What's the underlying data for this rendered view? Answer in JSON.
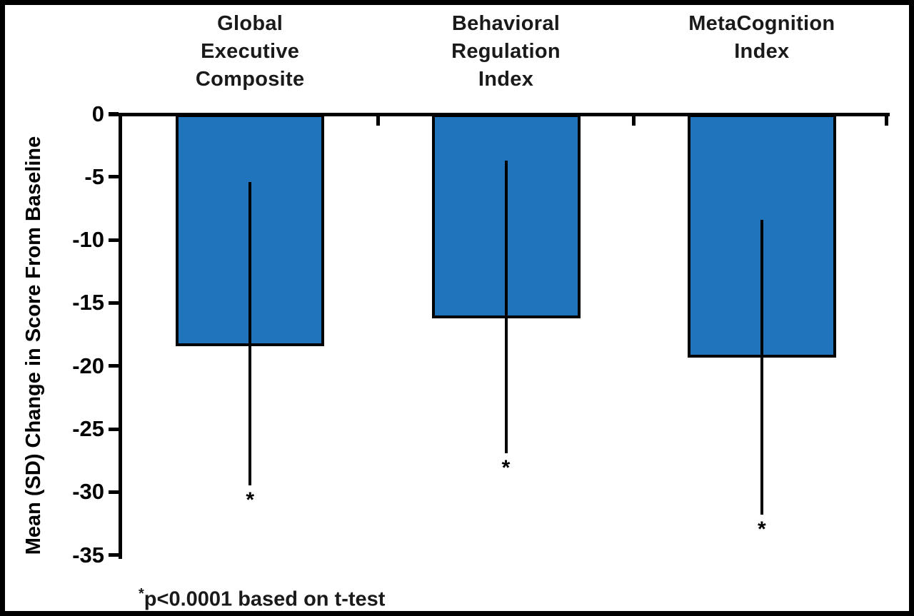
{
  "figure": {
    "background_color": "#ffffff",
    "frame_color": "#000000",
    "bar_color": "#1f74bc",
    "axis_color": "#000000"
  },
  "chart_data": {
    "type": "bar",
    "title": "",
    "xlabel": "",
    "ylabel": "Mean (SD) Change in Score From Baseline",
    "ylim": [
      -35,
      0
    ],
    "yticks": [
      0,
      -5,
      -10,
      -15,
      -20,
      -25,
      -30,
      -35
    ],
    "ytick_labels": [
      "0",
      "-5",
      "-10",
      "-15",
      "-20",
      "-25",
      "-30",
      "-35"
    ],
    "grid": false,
    "legend_position": "none",
    "categories": [
      "Global Executive Composite",
      "Behavioral Regulation Index",
      "MetaCognition Index"
    ],
    "category_label_lines": [
      [
        "Global",
        "Executive",
        "Composite"
      ],
      [
        "Behavioral",
        "Regulation",
        "Index"
      ],
      [
        "MetaCognition",
        "Index"
      ]
    ],
    "series": [
      {
        "name": "Mean change in score from baseline",
        "values": [
          -18.2,
          -16.0,
          -19.1
        ],
        "error_bar_top": [
          -5.4,
          -3.7,
          -8.4
        ],
        "error_bar_bottom": [
          -29.5,
          -26.9,
          -31.8
        ],
        "significance_markers": [
          "*",
          "*",
          "*"
        ]
      }
    ],
    "annotation": "*p<0.0001 based on t-test"
  },
  "footnote": {
    "marker": "*",
    "text": "p<0.0001 based on t-test"
  }
}
